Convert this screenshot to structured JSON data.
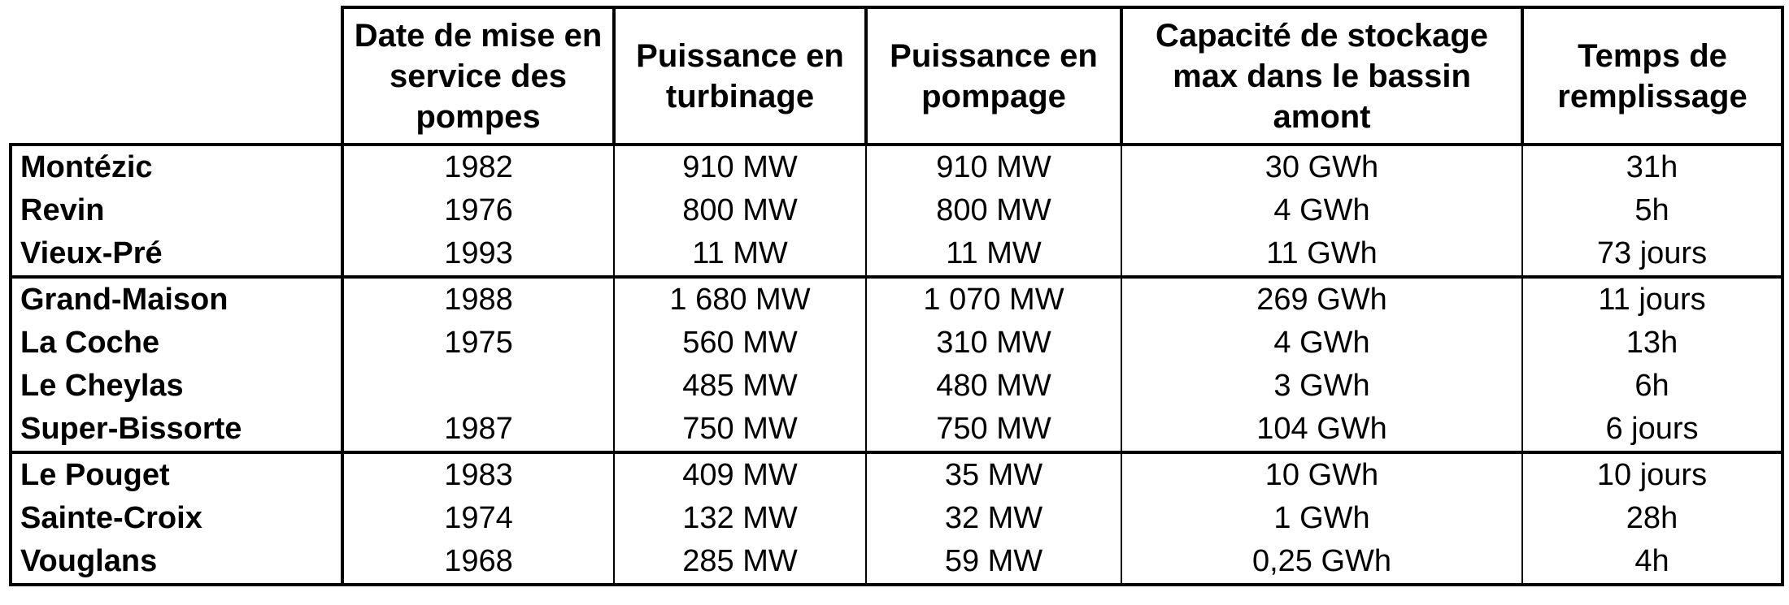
{
  "table": {
    "columns": [
      "Date de mise en service des pompes",
      "Puissance en turbinage",
      "Puissance en pompage",
      "Capacité de stockage max dans le bassin amont",
      "Temps de remplissage"
    ],
    "groups": [
      {
        "rows": [
          [
            "Montézic",
            "1982",
            "910 MW",
            "910 MW",
            "30 GWh",
            "31h"
          ],
          [
            "Revin",
            "1976",
            "800 MW",
            "800 MW",
            "4 GWh",
            "5h"
          ],
          [
            "Vieux-Pré",
            "1993",
            "11 MW",
            "11 MW",
            "11 GWh",
            "73 jours"
          ]
        ]
      },
      {
        "rows": [
          [
            "Grand-Maison",
            "1988",
            "1 680 MW",
            "1 070 MW",
            "269 GWh",
            "11 jours"
          ],
          [
            "La Coche",
            "1975",
            "560 MW",
            "310 MW",
            "4 GWh",
            "13h"
          ],
          [
            "Le Cheylas",
            null,
            "485 MW",
            "480 MW",
            "3 GWh",
            "6h"
          ],
          [
            "Super-Bissorte",
            "1987",
            "750 MW",
            "750 MW",
            "104 GWh",
            "6 jours"
          ]
        ]
      },
      {
        "rows": [
          [
            "Le Pouget",
            "1983",
            "409 MW",
            "35 MW",
            "10 GWh",
            "10 jours"
          ],
          [
            "Sainte-Croix",
            "1974",
            "132 MW",
            "32 MW",
            "1 GWh",
            "28h"
          ],
          [
            "Vouglans",
            "1968",
            "285 MW",
            "59 MW",
            "0,25 GWh",
            "4h"
          ]
        ]
      }
    ]
  }
}
